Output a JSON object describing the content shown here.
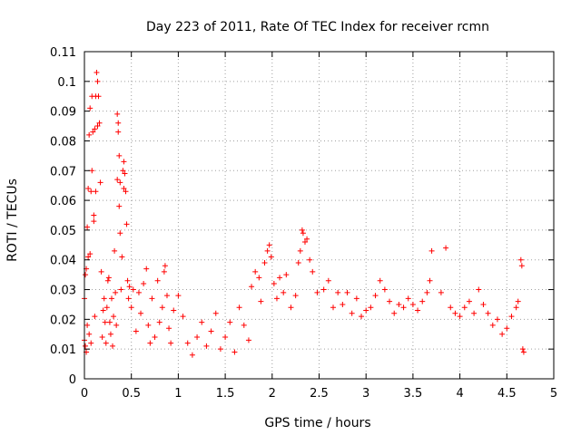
{
  "chart_data": {
    "type": "scatter",
    "title": "Day 223 of 2011, Rate Of TEC Index for receiver rcmn",
    "xlabel": "GPS time / hours",
    "ylabel": "ROTI / TECUs",
    "xlim": [
      0,
      5
    ],
    "ylim": [
      0,
      0.11
    ],
    "xticks": [
      "0",
      "0.5",
      "1",
      "1.5",
      "2",
      "2.5",
      "3",
      "3.5",
      "4",
      "4.5",
      "5"
    ],
    "yticks": [
      "0",
      "0.01",
      "0.02",
      "0.03",
      "0.04",
      "0.05",
      "0.06",
      "0.07",
      "0.08",
      "0.09",
      "0.1",
      "0.11"
    ],
    "grid": true,
    "marker": "plus",
    "series": [
      {
        "color": "#ff0000",
        "points": [
          [
            0.0,
            0.013
          ],
          [
            0.0,
            0.027
          ],
          [
            0.01,
            0.035
          ],
          [
            0.01,
            0.011
          ],
          [
            0.02,
            0.037
          ],
          [
            0.02,
            0.009
          ],
          [
            0.03,
            0.051
          ],
          [
            0.03,
            0.018
          ],
          [
            0.04,
            0.064
          ],
          [
            0.04,
            0.041
          ],
          [
            0.05,
            0.082
          ],
          [
            0.05,
            0.015
          ],
          [
            0.06,
            0.091
          ],
          [
            0.06,
            0.042
          ],
          [
            0.07,
            0.063
          ],
          [
            0.07,
            0.012
          ],
          [
            0.08,
            0.095
          ],
          [
            0.08,
            0.07
          ],
          [
            0.09,
            0.083
          ],
          [
            0.1,
            0.055
          ],
          [
            0.1,
            0.053
          ],
          [
            0.11,
            0.084
          ],
          [
            0.11,
            0.021
          ],
          [
            0.12,
            0.063
          ],
          [
            0.12,
            0.095
          ],
          [
            0.13,
            0.103
          ],
          [
            0.14,
            0.1
          ],
          [
            0.14,
            0.085
          ],
          [
            0.15,
            0.095
          ],
          [
            0.16,
            0.086
          ],
          [
            0.17,
            0.066
          ],
          [
            0.18,
            0.036
          ],
          [
            0.19,
            0.014
          ],
          [
            0.2,
            0.023
          ],
          [
            0.21,
            0.027
          ],
          [
            0.22,
            0.019
          ],
          [
            0.23,
            0.012
          ],
          [
            0.24,
            0.024
          ],
          [
            0.25,
            0.033
          ],
          [
            0.26,
            0.034
          ],
          [
            0.27,
            0.019
          ],
          [
            0.28,
            0.015
          ],
          [
            0.29,
            0.027
          ],
          [
            0.3,
            0.011
          ],
          [
            0.31,
            0.021
          ],
          [
            0.32,
            0.043
          ],
          [
            0.33,
            0.029
          ],
          [
            0.34,
            0.018
          ],
          [
            0.35,
            0.089
          ],
          [
            0.35,
            0.067
          ],
          [
            0.36,
            0.086
          ],
          [
            0.36,
            0.083
          ],
          [
            0.37,
            0.075
          ],
          [
            0.37,
            0.058
          ],
          [
            0.38,
            0.066
          ],
          [
            0.38,
            0.049
          ],
          [
            0.39,
            0.03
          ],
          [
            0.4,
            0.041
          ],
          [
            0.41,
            0.07
          ],
          [
            0.42,
            0.073
          ],
          [
            0.42,
            0.064
          ],
          [
            0.43,
            0.069
          ],
          [
            0.44,
            0.063
          ],
          [
            0.45,
            0.052
          ],
          [
            0.46,
            0.033
          ],
          [
            0.47,
            0.027
          ],
          [
            0.48,
            0.031
          ],
          [
            0.5,
            0.024
          ],
          [
            0.52,
            0.03
          ],
          [
            0.55,
            0.016
          ],
          [
            0.58,
            0.029
          ],
          [
            0.6,
            0.022
          ],
          [
            0.63,
            0.032
          ],
          [
            0.66,
            0.037
          ],
          [
            0.68,
            0.018
          ],
          [
            0.7,
            0.012
          ],
          [
            0.72,
            0.027
          ],
          [
            0.75,
            0.014
          ],
          [
            0.78,
            0.033
          ],
          [
            0.8,
            0.019
          ],
          [
            0.83,
            0.024
          ],
          [
            0.85,
            0.036
          ],
          [
            0.86,
            0.038
          ],
          [
            0.88,
            0.028
          ],
          [
            0.9,
            0.017
          ],
          [
            0.92,
            0.012
          ],
          [
            0.95,
            0.023
          ],
          [
            1.0,
            0.028
          ],
          [
            1.05,
            0.021
          ],
          [
            1.1,
            0.012
          ],
          [
            1.15,
            0.008
          ],
          [
            1.2,
            0.014
          ],
          [
            1.25,
            0.019
          ],
          [
            1.3,
            0.011
          ],
          [
            1.35,
            0.016
          ],
          [
            1.4,
            0.022
          ],
          [
            1.45,
            0.01
          ],
          [
            1.5,
            0.014
          ],
          [
            1.55,
            0.019
          ],
          [
            1.6,
            0.009
          ],
          [
            1.65,
            0.024
          ],
          [
            1.7,
            0.018
          ],
          [
            1.75,
            0.013
          ],
          [
            1.78,
            0.031
          ],
          [
            1.82,
            0.036
          ],
          [
            1.86,
            0.034
          ],
          [
            1.88,
            0.026
          ],
          [
            1.92,
            0.039
          ],
          [
            1.95,
            0.043
          ],
          [
            1.97,
            0.045
          ],
          [
            1.99,
            0.041
          ],
          [
            2.02,
            0.032
          ],
          [
            2.05,
            0.027
          ],
          [
            2.08,
            0.034
          ],
          [
            2.12,
            0.029
          ],
          [
            2.15,
            0.035
          ],
          [
            2.2,
            0.024
          ],
          [
            2.25,
            0.028
          ],
          [
            2.28,
            0.039
          ],
          [
            2.3,
            0.043
          ],
          [
            2.32,
            0.05
          ],
          [
            2.33,
            0.049
          ],
          [
            2.35,
            0.046
          ],
          [
            2.37,
            0.047
          ],
          [
            2.4,
            0.04
          ],
          [
            2.43,
            0.036
          ],
          [
            2.48,
            0.029
          ],
          [
            2.55,
            0.03
          ],
          [
            2.6,
            0.033
          ],
          [
            2.65,
            0.024
          ],
          [
            2.7,
            0.029
          ],
          [
            2.75,
            0.025
          ],
          [
            2.8,
            0.029
          ],
          [
            2.85,
            0.022
          ],
          [
            2.9,
            0.027
          ],
          [
            2.95,
            0.021
          ],
          [
            3.0,
            0.023
          ],
          [
            3.05,
            0.024
          ],
          [
            3.1,
            0.028
          ],
          [
            3.15,
            0.033
          ],
          [
            3.2,
            0.03
          ],
          [
            3.25,
            0.026
          ],
          [
            3.3,
            0.022
          ],
          [
            3.35,
            0.025
          ],
          [
            3.4,
            0.024
          ],
          [
            3.45,
            0.027
          ],
          [
            3.5,
            0.025
          ],
          [
            3.55,
            0.023
          ],
          [
            3.6,
            0.026
          ],
          [
            3.65,
            0.029
          ],
          [
            3.68,
            0.033
          ],
          [
            3.7,
            0.043
          ],
          [
            3.8,
            0.029
          ],
          [
            3.85,
            0.044
          ],
          [
            3.9,
            0.024
          ],
          [
            3.95,
            0.022
          ],
          [
            4.0,
            0.021
          ],
          [
            4.05,
            0.024
          ],
          [
            4.1,
            0.026
          ],
          [
            4.15,
            0.022
          ],
          [
            4.2,
            0.03
          ],
          [
            4.25,
            0.025
          ],
          [
            4.3,
            0.022
          ],
          [
            4.35,
            0.018
          ],
          [
            4.4,
            0.02
          ],
          [
            4.45,
            0.015
          ],
          [
            4.5,
            0.017
          ],
          [
            4.55,
            0.021
          ],
          [
            4.6,
            0.024
          ],
          [
            4.62,
            0.026
          ],
          [
            4.65,
            0.04
          ],
          [
            4.66,
            0.038
          ],
          [
            4.67,
            0.01
          ],
          [
            4.68,
            0.009
          ]
        ]
      }
    ]
  }
}
